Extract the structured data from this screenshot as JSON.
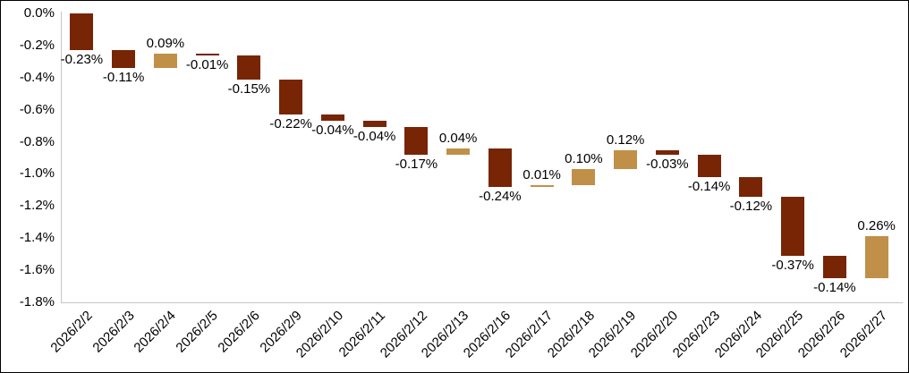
{
  "chart_data": {
    "type": "bar",
    "subtype": "waterfall",
    "title": "",
    "xlabel": "",
    "ylabel": "",
    "categories": [
      "2026/2/2",
      "2026/2/3",
      "2026/2/4",
      "2026/2/5",
      "2026/2/6",
      "2026/2/9",
      "2026/2/10",
      "2026/2/11",
      "2026/2/12",
      "2026/2/13",
      "2026/2/16",
      "2026/2/17",
      "2026/2/18",
      "2026/2/19",
      "2026/2/20",
      "2026/2/23",
      "2026/2/24",
      "2026/2/25",
      "2026/2/26",
      "2026/2/27"
    ],
    "values": [
      -0.23,
      -0.11,
      0.09,
      -0.01,
      -0.15,
      -0.22,
      -0.04,
      -0.04,
      -0.17,
      0.04,
      -0.24,
      0.01,
      0.1,
      0.12,
      -0.03,
      -0.14,
      -0.12,
      -0.37,
      -0.14,
      0.26
    ],
    "data_labels": [
      "-0.23%",
      "-0.11%",
      "0.09%",
      "-0.01%",
      "-0.15%",
      "-0.22%",
      "-0.04%",
      "-0.04%",
      "-0.17%",
      "0.04%",
      "-0.24%",
      "0.01%",
      "0.10%",
      "0.12%",
      "-0.03%",
      "-0.14%",
      "-0.12%",
      "-0.37%",
      "-0.14%",
      "0.26%"
    ],
    "cumulative_start": 0,
    "cumulative_end": -1.39,
    "ylim": [
      -1.8,
      0.0
    ],
    "ytick_step": 0.2,
    "yticks": [
      "0.0%",
      "-0.2%",
      "-0.4%",
      "-0.6%",
      "-0.8%",
      "-1.0%",
      "-1.2%",
      "-1.4%",
      "-1.6%",
      "-1.8%"
    ],
    "grid": false,
    "legend": false,
    "colors": {
      "decrease": "#772504",
      "increase": "#C09048",
      "axis_line": "#C6C6C6",
      "text": "#000000",
      "border": "#000000",
      "background": "#FFFFFF"
    }
  }
}
